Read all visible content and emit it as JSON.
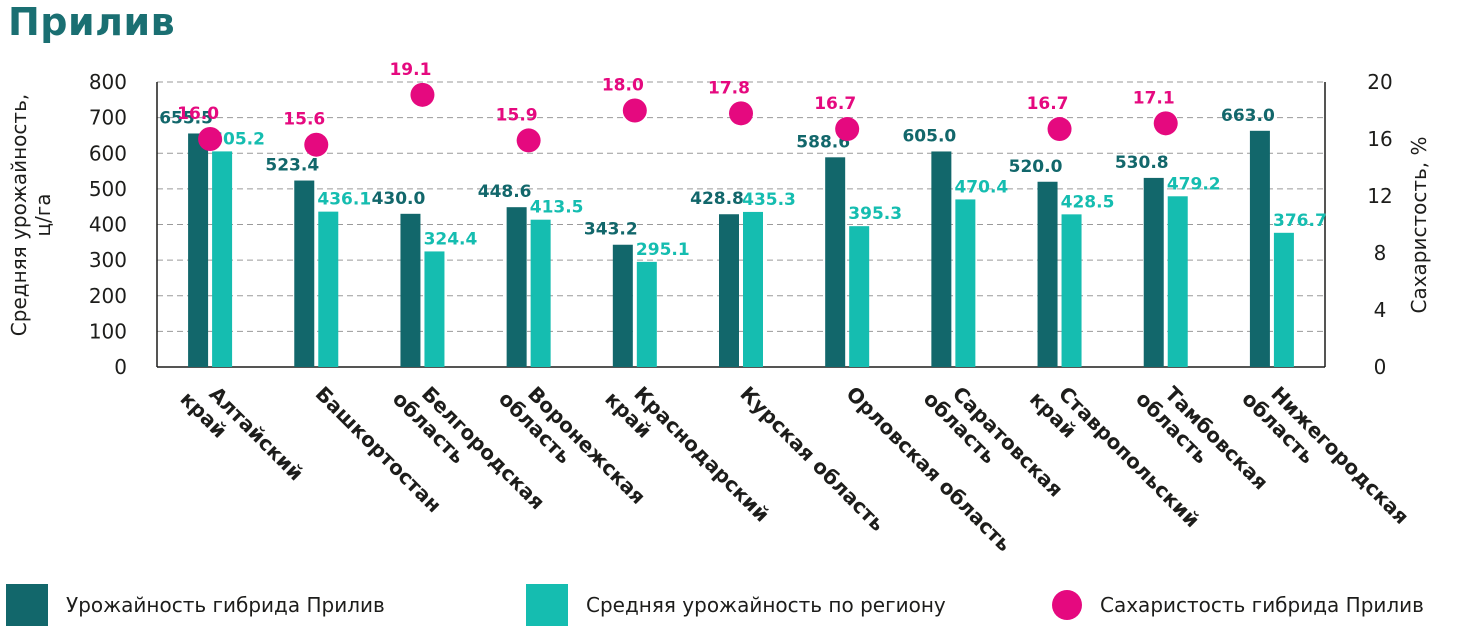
{
  "title": "Прилив",
  "colors": {
    "hybrid": "#12676b",
    "regional": "#15bdb0",
    "sugar": "#e5097f",
    "title": "#1a6f72"
  },
  "chart_data": {
    "type": "bar",
    "categories": [
      [
        "Алтайский",
        "край"
      ],
      [
        "Башкортостан"
      ],
      [
        "Белгородская",
        "область"
      ],
      [
        "Воронежская",
        "область"
      ],
      [
        "Краснодарский",
        "край"
      ],
      [
        "Курская область"
      ],
      [
        "Орловская область"
      ],
      [
        "Саратовская",
        "область"
      ],
      [
        "Ставропольский",
        "край"
      ],
      [
        "Тамбовская",
        "область"
      ],
      [
        "Нижегородская",
        "область"
      ]
    ],
    "series": [
      {
        "name": "Урожайность гибрида Прилив",
        "axis": "left",
        "values": [
          655.5,
          523.4,
          430.0,
          448.6,
          343.2,
          428.8,
          588.6,
          605.0,
          520.0,
          530.8,
          663.0
        ],
        "labels": [
          "655.5",
          "523.4",
          "430.0",
          "448.6",
          "343.2",
          "428.8",
          "588.6",
          "605.0",
          "520.0",
          "530.8",
          "663.0"
        ]
      },
      {
        "name": "Средняя урожайность по региону",
        "axis": "left",
        "values": [
          605.2,
          436.1,
          324.4,
          413.5,
          295.1,
          435.3,
          395.3,
          470.4,
          428.5,
          479.2,
          376.7
        ],
        "labels": [
          "605.2",
          "436.1",
          "324.4",
          "413.5",
          "295.1",
          "435.3",
          "395.3",
          "470.4",
          "428.5",
          "479.2",
          "376.7"
        ]
      },
      {
        "name": "Сахаристость гибрида Прилив",
        "axis": "right",
        "type": "scatter",
        "values": [
          16.0,
          15.6,
          19.1,
          15.9,
          18.0,
          17.8,
          16.7,
          null,
          16.7,
          17.1,
          null
        ],
        "labels": [
          "16.0",
          "15.6",
          "19.1",
          "15.9",
          "18.0",
          "17.8",
          "16.7",
          "",
          "16.7",
          "17.1",
          ""
        ]
      }
    ],
    "ylabel": [
      "Средняя урожайность,",
      "ц/га"
    ],
    "ylim": [
      0,
      800
    ],
    "yticks": [
      "0",
      "100",
      "200",
      "300",
      "400",
      "500",
      "600",
      "700",
      "800"
    ],
    "y2label": "Сахаристость, %",
    "y2lim": [
      0,
      20
    ],
    "y2ticks": [
      "0",
      "4",
      "8",
      "12",
      "16",
      "20"
    ],
    "grid": "horizontal dashed",
    "legend_position": "bottom"
  },
  "legend": [
    {
      "label": "Урожайность гибрида Прилив",
      "color": "#12676b",
      "shape": "square"
    },
    {
      "label": "Средняя урожайность по региону",
      "color": "#15bdb0",
      "shape": "square"
    },
    {
      "label": "Сахаристость гибрида Прилив",
      "color": "#e5097f",
      "shape": "circle"
    }
  ]
}
